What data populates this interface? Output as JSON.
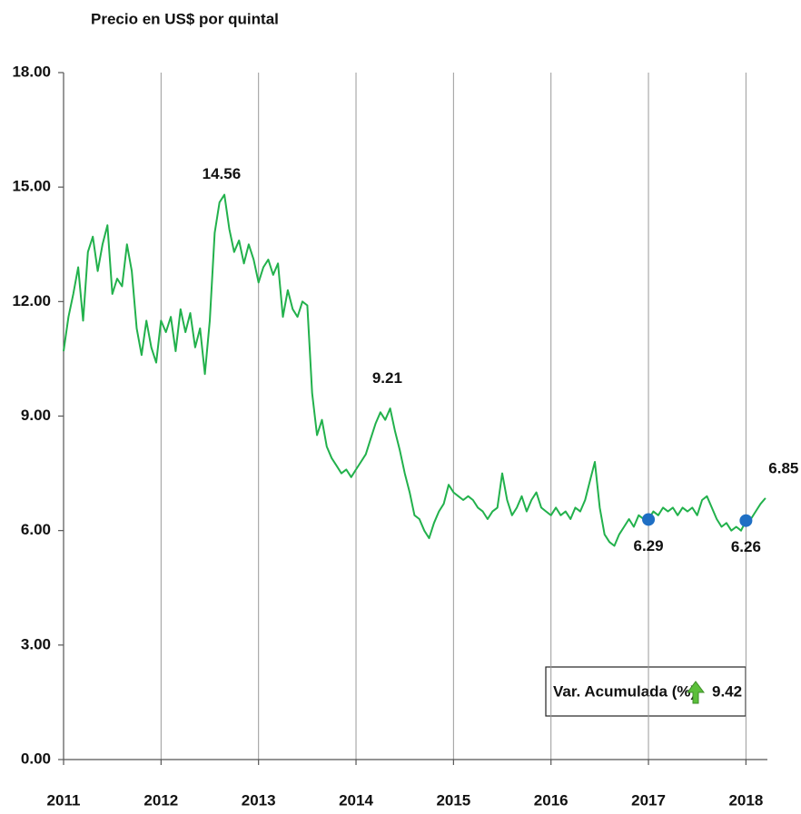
{
  "chart_data": {
    "type": "line",
    "title": "Precio en US$ por quintal",
    "x": [
      2011.0,
      2011.05,
      2011.1,
      2011.15,
      2011.2,
      2011.25,
      2011.3,
      2011.35,
      2011.4,
      2011.45,
      2011.5,
      2011.55,
      2011.6,
      2011.65,
      2011.7,
      2011.75,
      2011.8,
      2011.85,
      2011.9,
      2011.95,
      2012.0,
      2012.05,
      2012.1,
      2012.15,
      2012.2,
      2012.25,
      2012.3,
      2012.35,
      2012.4,
      2012.45,
      2012.5,
      2012.55,
      2012.6,
      2012.65,
      2012.7,
      2012.75,
      2012.8,
      2012.85,
      2012.9,
      2012.95,
      2013.0,
      2013.05,
      2013.1,
      2013.15,
      2013.2,
      2013.25,
      2013.3,
      2013.35,
      2013.4,
      2013.45,
      2013.5,
      2013.55,
      2013.6,
      2013.65,
      2013.7,
      2013.75,
      2013.8,
      2013.85,
      2013.9,
      2013.95,
      2014.0,
      2014.05,
      2014.1,
      2014.15,
      2014.2,
      2014.25,
      2014.3,
      2014.35,
      2014.4,
      2014.45,
      2014.5,
      2014.55,
      2014.6,
      2014.65,
      2014.7,
      2014.75,
      2014.8,
      2014.85,
      2014.9,
      2014.95,
      2015.0,
      2015.05,
      2015.1,
      2015.15,
      2015.2,
      2015.25,
      2015.3,
      2015.35,
      2015.4,
      2015.45,
      2015.5,
      2015.55,
      2015.6,
      2015.65,
      2015.7,
      2015.75,
      2015.8,
      2015.85,
      2015.9,
      2015.95,
      2016.0,
      2016.05,
      2016.1,
      2016.15,
      2016.2,
      2016.25,
      2016.3,
      2016.35,
      2016.4,
      2016.45,
      2016.5,
      2016.55,
      2016.6,
      2016.65,
      2016.7,
      2016.75,
      2016.8,
      2016.85,
      2016.9,
      2016.95,
      2017.0,
      2017.05,
      2017.1,
      2017.15,
      2017.2,
      2017.25,
      2017.3,
      2017.35,
      2017.4,
      2017.45,
      2017.5,
      2017.55,
      2017.6,
      2017.65,
      2017.7,
      2017.75,
      2017.8,
      2017.85,
      2017.9,
      2017.95,
      2018.0,
      2018.05,
      2018.1,
      2018.15,
      2018.2
    ],
    "series": [
      {
        "color": "#22b14c",
        "values": [
          10.7,
          11.6,
          12.2,
          12.9,
          11.5,
          13.3,
          13.7,
          12.8,
          13.5,
          14.0,
          12.2,
          12.6,
          12.4,
          13.5,
          12.8,
          11.3,
          10.6,
          11.5,
          10.8,
          10.4,
          11.5,
          11.2,
          11.6,
          10.7,
          11.8,
          11.2,
          11.7,
          10.8,
          11.3,
          10.1,
          11.5,
          13.8,
          14.6,
          14.8,
          13.9,
          13.3,
          13.6,
          13.0,
          13.5,
          13.1,
          12.5,
          12.9,
          13.1,
          12.7,
          13.0,
          11.6,
          12.3,
          11.8,
          11.6,
          12.0,
          11.9,
          9.6,
          8.5,
          8.9,
          8.2,
          7.9,
          7.7,
          7.5,
          7.6,
          7.4,
          7.6,
          7.8,
          8.0,
          8.4,
          8.8,
          9.1,
          8.9,
          9.2,
          8.6,
          8.1,
          7.5,
          7.0,
          6.4,
          6.3,
          6.0,
          5.8,
          6.2,
          6.5,
          6.7,
          7.2,
          7.0,
          6.9,
          6.8,
          6.9,
          6.8,
          6.6,
          6.5,
          6.3,
          6.5,
          6.6,
          7.5,
          6.8,
          6.4,
          6.6,
          6.9,
          6.5,
          6.8,
          7.0,
          6.6,
          6.5,
          6.4,
          6.6,
          6.4,
          6.5,
          6.3,
          6.6,
          6.5,
          6.8,
          7.3,
          7.8,
          6.6,
          5.9,
          5.7,
          5.6,
          5.9,
          6.1,
          6.3,
          6.1,
          6.4,
          6.3,
          6.29,
          6.5,
          6.4,
          6.6,
          6.5,
          6.6,
          6.4,
          6.6,
          6.5,
          6.6,
          6.4,
          6.8,
          6.9,
          6.6,
          6.3,
          6.1,
          6.2,
          6.0,
          6.1,
          6.0,
          6.26,
          6.3,
          6.5,
          6.7,
          6.85
        ]
      }
    ],
    "xlim": [
      2011,
      2018.22
    ],
    "xticks": [
      2011,
      2012,
      2013,
      2014,
      2015,
      2016,
      2017,
      2018
    ],
    "ylim": [
      0,
      18
    ],
    "yticks": [
      {
        "value": 0,
        "label": "0.00"
      },
      {
        "value": 3,
        "label": "3.00"
      },
      {
        "value": 6,
        "label": "6.00"
      },
      {
        "value": 9,
        "label": "9.00"
      },
      {
        "value": 12,
        "label": "12.00"
      },
      {
        "value": 15,
        "label": "15.00"
      },
      {
        "value": 18,
        "label": "18.00"
      }
    ],
    "grid": "x",
    "annotations": [
      {
        "x": 2012.62,
        "value": 14.56,
        "position": "above"
      },
      {
        "x": 2014.32,
        "value": 9.21,
        "position": "above"
      },
      {
        "x": 2017.0,
        "value": 6.29,
        "position": "below",
        "marker": "#1f6fc4"
      },
      {
        "x": 2018.0,
        "value": 6.26,
        "position": "below",
        "marker": "#1f6fc4"
      },
      {
        "x": 2018.2,
        "value": 6.85,
        "position": "above"
      }
    ],
    "summary": {
      "label": "Var. Acumulada (%)",
      "value": 9.42
    }
  }
}
